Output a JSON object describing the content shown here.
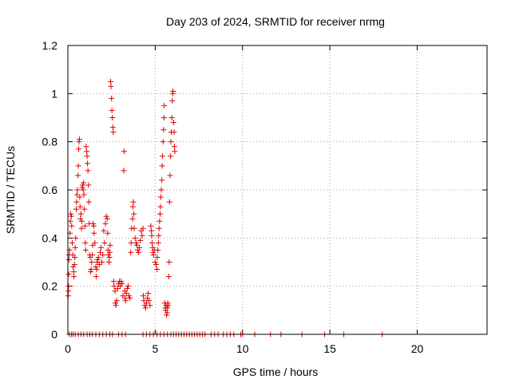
{
  "chart_data": {
    "type": "scatter",
    "title": "Day 203 of 2024, SRMTID for receiver nrmg",
    "xlabel": "GPS time / hours",
    "ylabel": "SRMTID / TECUs",
    "xlim": [
      0,
      24
    ],
    "ylim": [
      0,
      1.2
    ],
    "xticks": [
      0,
      5,
      10,
      15,
      20
    ],
    "xtick_labels": [
      "0",
      "5",
      "10",
      "15",
      "20"
    ],
    "yticks": [
      0,
      0.2,
      0.4,
      0.6,
      0.8,
      1.0,
      1.2
    ],
    "ytick_labels": [
      "0",
      "0.2",
      "0.4",
      "0.6",
      "0.8",
      "1",
      "1.2"
    ],
    "grid": true,
    "marker": "+",
    "marker_color": "#e00000",
    "series": [
      {
        "name": "SRMTID",
        "points": [
          [
            0.02,
            0.16
          ],
          [
            0.03,
            0.18
          ],
          [
            0.04,
            0.2
          ],
          [
            0.05,
            0.25
          ],
          [
            0.06,
            0.31
          ],
          [
            0.08,
            0.33
          ],
          [
            0.1,
            0.35
          ],
          [
            0.12,
            0.42
          ],
          [
            0.14,
            0.47
          ],
          [
            0.16,
            0.5
          ],
          [
            0.2,
            0.49
          ],
          [
            0.22,
            0.45
          ],
          [
            0.25,
            0.38
          ],
          [
            0.28,
            0.33
          ],
          [
            0.3,
            0.28
          ],
          [
            0.33,
            0.26
          ],
          [
            0.35,
            0.24
          ],
          [
            0.38,
            0.29
          ],
          [
            0.4,
            0.32
          ],
          [
            0.42,
            0.36
          ],
          [
            0.45,
            0.4
          ],
          [
            0.48,
            0.52
          ],
          [
            0.5,
            0.55
          ],
          [
            0.52,
            0.58
          ],
          [
            0.55,
            0.6
          ],
          [
            0.58,
            0.66
          ],
          [
            0.6,
            0.7
          ],
          [
            0.62,
            0.77
          ],
          [
            0.64,
            0.8
          ],
          [
            0.66,
            0.81
          ],
          [
            0.68,
            0.57
          ],
          [
            0.7,
            0.53
          ],
          [
            0.72,
            0.48
          ],
          [
            0.75,
            0.5
          ],
          [
            0.78,
            0.44
          ],
          [
            0.8,
            0.47
          ],
          [
            0.82,
            0.61
          ],
          [
            0.85,
            0.62
          ],
          [
            0.88,
            0.6
          ],
          [
            0.9,
            0.63
          ],
          [
            0.92,
            0.58
          ],
          [
            0.95,
            0.52
          ],
          [
            0.98,
            0.45
          ],
          [
            1.0,
            0.38
          ],
          [
            1.02,
            0.35
          ],
          [
            1.05,
            0.78
          ],
          [
            1.08,
            0.76
          ],
          [
            1.1,
            0.74
          ],
          [
            1.12,
            0.71
          ],
          [
            1.15,
            0.68
          ],
          [
            1.18,
            0.62
          ],
          [
            1.2,
            0.55
          ],
          [
            1.22,
            0.46
          ],
          [
            1.25,
            0.33
          ],
          [
            1.28,
            0.32
          ],
          [
            1.3,
            0.26
          ],
          [
            1.33,
            0.27
          ],
          [
            1.36,
            0.3
          ],
          [
            1.4,
            0.33
          ],
          [
            1.42,
            0.37
          ],
          [
            1.45,
            0.46
          ],
          [
            1.48,
            0.45
          ],
          [
            1.5,
            0.42
          ],
          [
            1.55,
            0.38
          ],
          [
            1.6,
            0.28
          ],
          [
            1.62,
            0.24
          ],
          [
            1.65,
            0.27
          ],
          [
            1.68,
            0.3
          ],
          [
            1.7,
            0.31
          ],
          [
            1.75,
            0.32
          ],
          [
            1.8,
            0.29
          ],
          [
            1.85,
            0.34
          ],
          [
            1.9,
            0.36
          ],
          [
            1.95,
            0.3
          ],
          [
            2.0,
            0.33
          ],
          [
            2.05,
            0.43
          ],
          [
            2.1,
            0.38
          ],
          [
            2.15,
            0.46
          ],
          [
            2.2,
            0.49
          ],
          [
            2.25,
            0.48
          ],
          [
            2.28,
            0.42
          ],
          [
            2.3,
            0.35
          ],
          [
            2.32,
            0.33
          ],
          [
            2.35,
            0.3
          ],
          [
            2.38,
            0.32
          ],
          [
            2.4,
            0.34
          ],
          [
            2.42,
            0.37
          ],
          [
            2.45,
            1.05
          ],
          [
            2.47,
            1.03
          ],
          [
            2.5,
            0.98
          ],
          [
            2.52,
            0.93
          ],
          [
            2.55,
            0.9
          ],
          [
            2.58,
            0.86
          ],
          [
            2.6,
            0.84
          ],
          [
            2.62,
            0.22
          ],
          [
            2.65,
            0.2
          ],
          [
            2.7,
            0.18
          ],
          [
            2.72,
            0.13
          ],
          [
            2.75,
            0.12
          ],
          [
            2.8,
            0.14
          ],
          [
            2.85,
            0.19
          ],
          [
            2.9,
            0.21
          ],
          [
            2.95,
            0.22
          ],
          [
            3.0,
            0.2
          ],
          [
            3.05,
            0.22
          ],
          [
            3.1,
            0.21
          ],
          [
            3.15,
            0.16
          ],
          [
            3.2,
            0.68
          ],
          [
            3.22,
            0.76
          ],
          [
            3.25,
            0.18
          ],
          [
            3.28,
            0.15
          ],
          [
            3.3,
            0.14
          ],
          [
            3.35,
            0.17
          ],
          [
            3.4,
            0.19
          ],
          [
            3.45,
            0.2
          ],
          [
            3.5,
            0.16
          ],
          [
            3.55,
            0.15
          ],
          [
            3.6,
            0.34
          ],
          [
            3.62,
            0.38
          ],
          [
            3.65,
            0.44
          ],
          [
            3.7,
            0.48
          ],
          [
            3.72,
            0.53
          ],
          [
            3.75,
            0.55
          ],
          [
            3.78,
            0.5
          ],
          [
            3.8,
            0.44
          ],
          [
            3.85,
            0.4
          ],
          [
            3.9,
            0.38
          ],
          [
            3.95,
            0.37
          ],
          [
            4.0,
            0.35
          ],
          [
            4.05,
            0.34
          ],
          [
            4.1,
            0.36
          ],
          [
            4.15,
            0.39
          ],
          [
            4.2,
            0.43
          ],
          [
            4.25,
            0.41
          ],
          [
            4.3,
            0.44
          ],
          [
            4.32,
            0.16
          ],
          [
            4.35,
            0.14
          ],
          [
            4.4,
            0.12
          ],
          [
            4.45,
            0.11
          ],
          [
            4.5,
            0.13
          ],
          [
            4.55,
            0.15
          ],
          [
            4.6,
            0.17
          ],
          [
            4.65,
            0.14
          ],
          [
            4.7,
            0.12
          ],
          [
            4.75,
            0.45
          ],
          [
            4.78,
            0.43
          ],
          [
            4.8,
            0.41
          ],
          [
            4.82,
            0.38
          ],
          [
            4.85,
            0.36
          ],
          [
            4.88,
            0.34
          ],
          [
            4.9,
            0.33
          ],
          [
            4.95,
            0.35
          ],
          [
            5.0,
            0.3
          ],
          [
            5.05,
            0.29
          ],
          [
            5.1,
            0.27
          ],
          [
            5.12,
            0.32
          ],
          [
            5.15,
            0.35
          ],
          [
            5.18,
            0.38
          ],
          [
            5.2,
            0.41
          ],
          [
            5.22,
            0.44
          ],
          [
            5.25,
            0.47
          ],
          [
            5.28,
            0.5
          ],
          [
            5.3,
            0.53
          ],
          [
            5.32,
            0.57
          ],
          [
            5.35,
            0.6
          ],
          [
            5.38,
            0.64
          ],
          [
            5.4,
            0.7
          ],
          [
            5.42,
            0.74
          ],
          [
            5.45,
            0.8
          ],
          [
            5.48,
            0.85
          ],
          [
            5.5,
            0.9
          ],
          [
            5.52,
            0.95
          ],
          [
            5.55,
            0.13
          ],
          [
            5.58,
            0.11
          ],
          [
            5.6,
            0.1
          ],
          [
            5.62,
            0.12
          ],
          [
            5.65,
            0.08
          ],
          [
            5.68,
            0.09
          ],
          [
            5.7,
            0.11
          ],
          [
            5.72,
            0.13
          ],
          [
            5.75,
            0.12
          ],
          [
            5.78,
            0.24
          ],
          [
            5.8,
            0.3
          ],
          [
            5.82,
            0.55
          ],
          [
            5.85,
            0.66
          ],
          [
            5.88,
            0.74
          ],
          [
            5.9,
            0.8
          ],
          [
            5.92,
            0.84
          ],
          [
            5.95,
            0.9
          ],
          [
            5.98,
            0.97
          ],
          [
            6.0,
            1.0
          ],
          [
            6.02,
            1.01
          ],
          [
            6.05,
            0.88
          ],
          [
            6.08,
            0.84
          ],
          [
            6.1,
            0.78
          ],
          [
            6.12,
            0.76
          ],
          [
            0.08,
            0
          ],
          [
            0.2,
            0
          ],
          [
            0.3,
            0
          ],
          [
            0.42,
            0
          ],
          [
            0.6,
            0
          ],
          [
            0.75,
            0
          ],
          [
            0.9,
            0
          ],
          [
            1.1,
            0
          ],
          [
            1.25,
            0
          ],
          [
            1.4,
            0
          ],
          [
            1.6,
            0
          ],
          [
            1.8,
            0
          ],
          [
            2.0,
            0
          ],
          [
            2.2,
            0
          ],
          [
            2.4,
            0
          ],
          [
            2.55,
            0
          ],
          [
            2.9,
            0
          ],
          [
            3.1,
            0
          ],
          [
            3.3,
            0
          ],
          [
            4.3,
            0
          ],
          [
            4.5,
            0
          ],
          [
            4.7,
            0
          ],
          [
            4.9,
            0
          ],
          [
            5.1,
            0
          ],
          [
            5.3,
            0
          ],
          [
            5.5,
            0
          ],
          [
            5.7,
            0
          ],
          [
            5.9,
            0
          ],
          [
            6.05,
            0
          ],
          [
            6.2,
            0
          ],
          [
            6.35,
            0
          ],
          [
            6.5,
            0
          ],
          [
            6.65,
            0
          ],
          [
            6.8,
            0
          ],
          [
            6.95,
            0
          ],
          [
            7.1,
            0
          ],
          [
            7.25,
            0
          ],
          [
            7.4,
            0
          ],
          [
            7.55,
            0
          ],
          [
            7.7,
            0
          ],
          [
            7.85,
            0
          ],
          [
            8.2,
            0
          ],
          [
            8.4,
            0
          ],
          [
            8.6,
            0
          ],
          [
            8.9,
            0
          ],
          [
            9.1,
            0
          ],
          [
            9.3,
            0
          ],
          [
            9.5,
            0
          ],
          [
            9.9,
            0
          ],
          [
            10.0,
            0
          ],
          [
            10.7,
            0
          ],
          [
            11.6,
            0
          ],
          [
            12.2,
            0
          ],
          [
            13.4,
            0
          ],
          [
            14.7,
            0
          ],
          [
            15.8,
            0
          ],
          [
            18.0,
            0
          ]
        ]
      }
    ]
  }
}
